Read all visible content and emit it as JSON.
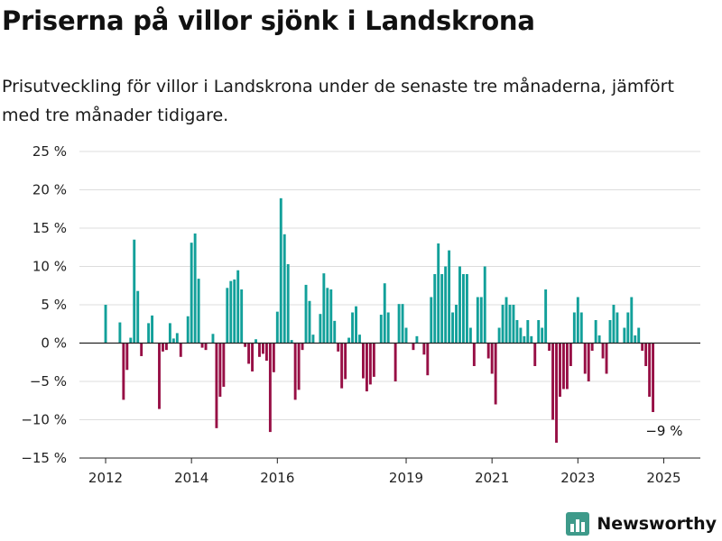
{
  "title": "Priserna på villor sjönk i Landskrona",
  "subtitle": "Prisutveckling för villor i Landskrona under de senaste tre månaderna, jämfört med tre månader tidigare.",
  "brand": {
    "name": "Newsworthy",
    "icon": "newsworthy-bar-chart-icon",
    "color": "#3e9a8a"
  },
  "colors": {
    "positive": "#12a09a",
    "negative": "#970f45",
    "grid": "#dddddd",
    "zero": "#222222"
  },
  "chart_data": {
    "type": "bar",
    "title": "Priserna på villor sjönk i Landskrona",
    "ylim": [
      -15,
      25
    ],
    "yticks": [
      25,
      20,
      15,
      10,
      5,
      0,
      -5,
      -10,
      -15
    ],
    "ytick_labels": [
      "25 %",
      "20 %",
      "15 %",
      "10 %",
      "5 %",
      "0 %",
      "−5 %",
      "−10 %",
      "−15 %"
    ],
    "xlim": [
      2011.6,
      2025.6
    ],
    "xticks": [
      2012,
      2014,
      2016,
      2019,
      2021,
      2023,
      2025
    ],
    "xtick_labels": [
      "2012",
      "2014",
      "2016",
      "2019",
      "2021",
      "2023",
      "2025"
    ],
    "grid": true,
    "annotation": {
      "text": "−9 %",
      "x": 2025.0,
      "y": -9
    },
    "values": [
      5,
      0,
      0,
      0,
      2.7,
      -7.4,
      -3.5,
      0.7,
      13.5,
      6.8,
      -1.7,
      0,
      2.6,
      3.6,
      0,
      -8.6,
      -1.1,
      -0.9,
      2.6,
      0.6,
      1.3,
      -1.8,
      0,
      3.5,
      13.1,
      14.3,
      8.4,
      -0.6,
      -0.9,
      0,
      1.2,
      -11.1,
      -7,
      -5.7,
      7.2,
      8.1,
      8.3,
      9.5,
      7,
      -0.5,
      -2.7,
      -3.7,
      0.5,
      -1.8,
      -1.4,
      -2.3,
      -11.6,
      -3.8,
      4.1,
      18.9,
      14.2,
      10.3,
      0.4,
      -7.4,
      -6.1,
      -0.9,
      7.6,
      5.5,
      1.1,
      0,
      3.8,
      9.1,
      7.2,
      7,
      2.9,
      -1.1,
      -5.9,
      -4.7,
      0.7,
      4,
      4.8,
      1.1,
      -4.6,
      -6.3,
      -5.4,
      -4.4,
      0,
      3.7,
      7.8,
      4,
      0,
      -5,
      5.1,
      5.1,
      2,
      0,
      -0.9,
      0.9,
      0,
      -1.5,
      -4.2,
      6,
      9,
      13,
      9,
      10,
      12.1,
      4,
      5,
      10,
      9,
      9,
      2,
      -3,
      6,
      6,
      10,
      -2,
      -4,
      -8,
      2,
      5,
      6,
      5,
      5,
      3,
      2,
      0.9,
      3,
      0.9,
      -3,
      3,
      2,
      7,
      -1,
      -10,
      -13,
      -7,
      -6,
      -6,
      -3,
      4,
      6,
      4,
      -4,
      -5,
      -1,
      3,
      1,
      -2,
      -4,
      3,
      5,
      4,
      0,
      2,
      4,
      6,
      1,
      2,
      -1,
      -3,
      -7,
      -9
    ]
  }
}
